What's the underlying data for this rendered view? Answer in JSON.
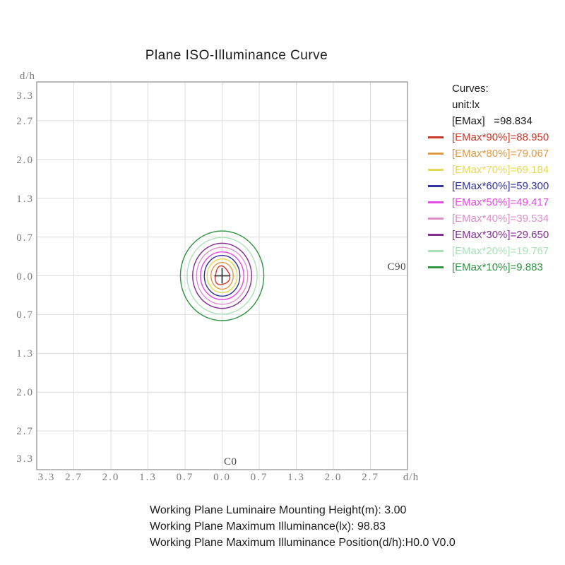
{
  "title": "Plane ISO-Illuminance Curve",
  "axes": {
    "y_axis_label": "d/h",
    "x_axis_label": "d/h",
    "y_ticks": [
      "3.3",
      "2.7",
      "2.0",
      "1.3",
      "0.7",
      "0.0",
      "0.7",
      "1.3",
      "2.0",
      "2.7",
      "3.3"
    ],
    "x_ticks": [
      "3.3",
      "2.7",
      "2.0",
      "1.3",
      "0.7",
      "0.0",
      "0.7",
      "1.3",
      "2.0",
      "2.7"
    ],
    "plane_label_c0": "C0",
    "plane_label_c90": "C90"
  },
  "legend": {
    "header": "Curves:",
    "unit": "unit:lx",
    "emax_line": "[EMax]   =98.834"
  },
  "footer": {
    "lines": [
      "Working Plane Luminaire Mounting Height(m): 3.00",
      "Working Plane Maximum Illuminance(lx): 98.83",
      "Working Plane Maximum Illuminance Position(d/h):H0.0 V0.0"
    ]
  },
  "chart_data": {
    "type": "contour",
    "title": "Plane ISO-Illuminance Curve",
    "unit": "lx",
    "emax_lx": 98.834,
    "axis": {
      "x_label": "d/h",
      "y_label": "d/h",
      "x_range": [
        -3.33,
        3.33
      ],
      "y_range": [
        -3.33,
        3.33
      ],
      "tick_step": 0.667,
      "grid": true,
      "legend_position": "right"
    },
    "center_marker": {
      "x": 0.0,
      "y": 0.0,
      "shape": "cross"
    },
    "plane_cut_labels": {
      "horizontal": "C0",
      "vertical": "C90"
    },
    "levels": [
      {
        "percent": 90,
        "label": "[EMax*90%]=88.950",
        "value_lx": 88.95,
        "color": "#cb372a",
        "rx_dh": 0.13,
        "ry_dh": 0.16
      },
      {
        "percent": 80,
        "label": "[EMax*80%]=79.067",
        "value_lx": 79.067,
        "color": "#e09a44",
        "rx_dh": 0.2,
        "ry_dh": 0.23
      },
      {
        "percent": 70,
        "label": "[EMax*70%]=69.184",
        "value_lx": 69.184,
        "color": "#e5d955",
        "rx_dh": 0.27,
        "ry_dh": 0.29
      },
      {
        "percent": 60,
        "label": "[EMax*60%]=59.300",
        "value_lx": 59.3,
        "color": "#32329f",
        "rx_dh": 0.32,
        "ry_dh": 0.35
      },
      {
        "percent": 50,
        "label": "[EMax*50%]=49.417",
        "value_lx": 49.417,
        "color": "#e549e5",
        "rx_dh": 0.39,
        "ry_dh": 0.41
      },
      {
        "percent": 40,
        "label": "[EMax*40%]=39.534",
        "value_lx": 39.534,
        "color": "#dd8fcb",
        "rx_dh": 0.46,
        "ry_dh": 0.49
      },
      {
        "percent": 30,
        "label": "[EMax*30%]=29.650",
        "value_lx": 29.65,
        "color": "#822e92",
        "rx_dh": 0.53,
        "ry_dh": 0.56
      },
      {
        "percent": 20,
        "label": "[EMax*20%]=19.767",
        "value_lx": 19.767,
        "color": "#a9e2ba",
        "rx_dh": 0.63,
        "ry_dh": 0.66
      },
      {
        "percent": 10,
        "label": "[EMax*10%]=9.883",
        "value_lx": 9.883,
        "color": "#319344",
        "rx_dh": 0.75,
        "ry_dh": 0.77
      }
    ]
  }
}
